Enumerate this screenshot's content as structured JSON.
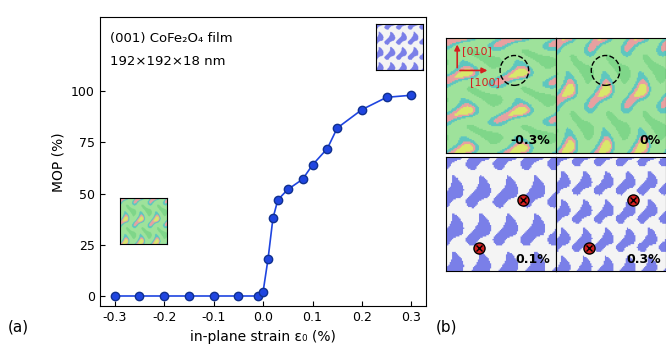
{
  "chart_data": {
    "type": "line",
    "panel_label": "(a)",
    "annotations": [
      "(001) CoFe₂O₄ film",
      "192×192×18 nm"
    ],
    "x_label": "in-plane strain ε₀ (%)",
    "y_label": "MOP (%)",
    "x": [
      -0.3,
      -0.25,
      -0.2,
      -0.15,
      -0.1,
      -0.05,
      -0.01,
      0.0,
      0.01,
      0.02,
      0.03,
      0.05,
      0.08,
      0.1,
      0.13,
      0.15,
      0.2,
      0.25,
      0.3
    ],
    "values": [
      0,
      0,
      0,
      0,
      0,
      0,
      0,
      2,
      18,
      38,
      47,
      52,
      57,
      64,
      72,
      82,
      91,
      97,
      98
    ],
    "color": "#1f45e0",
    "marker": "o",
    "line_style": "solid",
    "xlim": [
      -0.33,
      0.33
    ],
    "xticks": [
      -0.3,
      -0.2,
      -0.1,
      {
        "value": 0,
        "label": "0.0"
      },
      0.1,
      0.2,
      0.3
    ],
    "ylim": [
      -5,
      136
    ],
    "yticks": [
      0,
      25,
      50,
      75,
      100
    ],
    "grid": false
  },
  "panel_b": {
    "label": "(b)",
    "direction_labels": [
      "[010]",
      "[100]"
    ],
    "maps": [
      {
        "label": "-0.3%"
      },
      {
        "label": "0%"
      },
      {
        "label": "0.1%"
      },
      {
        "label": "0.3%"
      }
    ]
  }
}
